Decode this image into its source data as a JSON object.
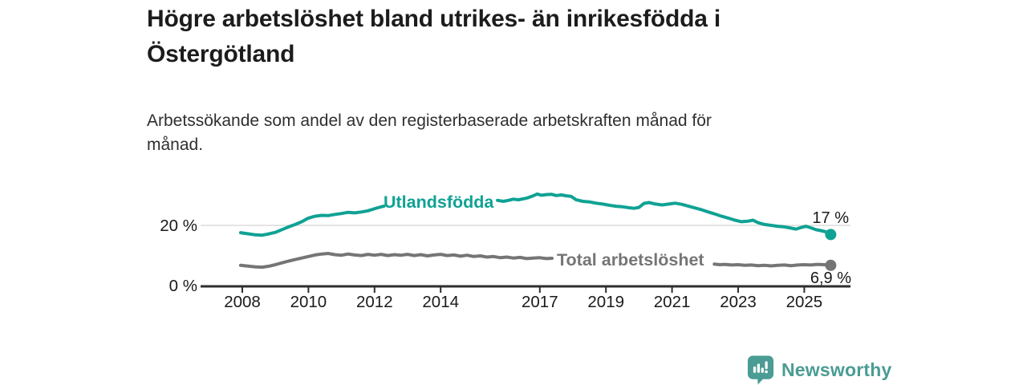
{
  "header": {
    "title": "Högre arbetslöshet bland utrikes- än inrikesfödda i\nÖstergötland",
    "subtitle": "Arbetssökande som andel av den registerbaserade arbetskraften månad för\nmånad."
  },
  "footer": {
    "brand": "Newsworthy",
    "brand_color": "#4a9c94"
  },
  "chart_data": {
    "type": "line",
    "title": "Högre arbetslöshet bland utrikes- än inrikesfödda i Östergötland",
    "subtitle": "Arbetssökande som andel av den registerbaserade arbetskraften månad för månad.",
    "unit": "%",
    "x_axis": {
      "ticks": [
        2008,
        2010,
        2012,
        2014,
        2017,
        2019,
        2021,
        2023,
        2025
      ],
      "range": [
        2006.7,
        2026.4
      ]
    },
    "y_axis": {
      "ticks": [
        {
          "value": 0,
          "label": "0 %"
        },
        {
          "value": 20,
          "label": "20 %"
        }
      ],
      "ylim": [
        0,
        33
      ],
      "gridlines": [
        20
      ]
    },
    "grid": "single light horizontal gridline at 20 %",
    "legend_position": "inline labels on lines; end-value labels at right",
    "series": [
      {
        "name": "Utlandsfödda",
        "color": "#0fa294",
        "line_label": "Utlandsfödda",
        "end_label": "17 %",
        "end_value": 17,
        "note": "line interrupted by its inline label between ~2012.3 and ~2015.7",
        "segments": [
          [
            [
              2007.95,
              17.6
            ],
            [
              2008.2,
              17.2
            ],
            [
              2008.4,
              16.9
            ],
            [
              2008.6,
              16.8
            ],
            [
              2008.8,
              17.2
            ],
            [
              2009.0,
              17.7
            ],
            [
              2009.2,
              18.6
            ],
            [
              2009.4,
              19.5
            ],
            [
              2009.6,
              20.3
            ],
            [
              2009.8,
              21.2
            ],
            [
              2010.0,
              22.4
            ],
            [
              2010.2,
              23.0
            ],
            [
              2010.4,
              23.3
            ],
            [
              2010.6,
              23.2
            ],
            [
              2010.8,
              23.6
            ],
            [
              2011.0,
              23.9
            ],
            [
              2011.2,
              24.3
            ],
            [
              2011.4,
              24.1
            ],
            [
              2011.6,
              24.4
            ],
            [
              2011.8,
              24.8
            ],
            [
              2011.95,
              25.3
            ],
            [
              2012.1,
              25.8
            ],
            [
              2012.28,
              26.3
            ]
          ],
          [
            [
              2015.72,
              28.2
            ],
            [
              2015.9,
              27.9
            ],
            [
              2016.05,
              28.2
            ],
            [
              2016.2,
              28.6
            ],
            [
              2016.35,
              28.4
            ],
            [
              2016.5,
              28.7
            ],
            [
              2016.65,
              29.1
            ],
            [
              2016.8,
              29.7
            ],
            [
              2016.92,
              30.3
            ],
            [
              2017.05,
              29.9
            ],
            [
              2017.2,
              30.1
            ],
            [
              2017.35,
              30.2
            ],
            [
              2017.5,
              29.8
            ],
            [
              2017.65,
              30.0
            ],
            [
              2017.8,
              29.7
            ],
            [
              2017.95,
              29.5
            ],
            [
              2018.1,
              28.4
            ],
            [
              2018.3,
              27.9
            ],
            [
              2018.5,
              27.7
            ],
            [
              2018.7,
              27.3
            ],
            [
              2018.9,
              27.0
            ],
            [
              2019.1,
              26.6
            ],
            [
              2019.3,
              26.3
            ],
            [
              2019.5,
              26.1
            ],
            [
              2019.7,
              25.8
            ],
            [
              2019.85,
              25.6
            ],
            [
              2020.0,
              25.9
            ],
            [
              2020.15,
              27.2
            ],
            [
              2020.3,
              27.5
            ],
            [
              2020.5,
              27.0
            ],
            [
              2020.7,
              26.7
            ],
            [
              2020.9,
              27.0
            ],
            [
              2021.1,
              27.3
            ],
            [
              2021.3,
              26.9
            ],
            [
              2021.5,
              26.3
            ],
            [
              2021.7,
              25.7
            ],
            [
              2021.9,
              25.1
            ],
            [
              2022.1,
              24.4
            ],
            [
              2022.3,
              23.7
            ],
            [
              2022.5,
              23.0
            ],
            [
              2022.7,
              22.4
            ],
            [
              2022.9,
              21.7
            ],
            [
              2023.1,
              21.2
            ],
            [
              2023.3,
              21.4
            ],
            [
              2023.45,
              21.7
            ],
            [
              2023.6,
              20.9
            ],
            [
              2023.8,
              20.3
            ],
            [
              2024.0,
              20.0
            ],
            [
              2024.2,
              19.7
            ],
            [
              2024.4,
              19.5
            ],
            [
              2024.6,
              19.1
            ],
            [
              2024.75,
              18.8
            ],
            [
              2024.9,
              19.3
            ],
            [
              2025.05,
              19.7
            ],
            [
              2025.2,
              19.2
            ],
            [
              2025.35,
              18.6
            ],
            [
              2025.5,
              18.3
            ],
            [
              2025.65,
              17.9
            ],
            [
              2025.8,
              17.0
            ]
          ]
        ]
      },
      {
        "name": "Total arbetslöshet",
        "color": "#757575",
        "line_label": "Total arbetslöshet",
        "end_label": "6,9 %",
        "end_value": 6.9,
        "note": "line interrupted by its inline label between ~2017.4 and ~2022.3",
        "segments": [
          [
            [
              2007.95,
              6.9
            ],
            [
              2008.2,
              6.6
            ],
            [
              2008.4,
              6.4
            ],
            [
              2008.6,
              6.3
            ],
            [
              2008.8,
              6.6
            ],
            [
              2009.0,
              7.1
            ],
            [
              2009.2,
              7.7
            ],
            [
              2009.4,
              8.3
            ],
            [
              2009.6,
              8.8
            ],
            [
              2009.8,
              9.3
            ],
            [
              2010.0,
              9.8
            ],
            [
              2010.2,
              10.3
            ],
            [
              2010.4,
              10.6
            ],
            [
              2010.6,
              10.8
            ],
            [
              2010.8,
              10.4
            ],
            [
              2011.0,
              10.2
            ],
            [
              2011.2,
              10.6
            ],
            [
              2011.4,
              10.3
            ],
            [
              2011.6,
              10.1
            ],
            [
              2011.8,
              10.5
            ],
            [
              2012.0,
              10.2
            ],
            [
              2012.2,
              10.5
            ],
            [
              2012.4,
              10.1
            ],
            [
              2012.6,
              10.4
            ],
            [
              2012.8,
              10.2
            ],
            [
              2013.0,
              10.5
            ],
            [
              2013.2,
              10.1
            ],
            [
              2013.4,
              10.4
            ],
            [
              2013.6,
              10.0
            ],
            [
              2013.8,
              10.3
            ],
            [
              2014.0,
              10.5
            ],
            [
              2014.2,
              10.1
            ],
            [
              2014.4,
              10.3
            ],
            [
              2014.6,
              9.9
            ],
            [
              2014.8,
              10.2
            ],
            [
              2015.0,
              9.8
            ],
            [
              2015.2,
              10.0
            ],
            [
              2015.4,
              9.6
            ],
            [
              2015.6,
              9.8
            ],
            [
              2015.8,
              9.4
            ],
            [
              2016.0,
              9.6
            ],
            [
              2016.2,
              9.3
            ],
            [
              2016.4,
              9.5
            ],
            [
              2016.6,
              9.1
            ],
            [
              2016.8,
              9.3
            ],
            [
              2017.0,
              9.4
            ],
            [
              2017.2,
              9.1
            ],
            [
              2017.37,
              9.2
            ]
          ],
          [
            [
              2022.28,
              7.3
            ],
            [
              2022.45,
              7.1
            ],
            [
              2022.6,
              7.2
            ],
            [
              2022.8,
              7.0
            ],
            [
              2023.0,
              7.1
            ],
            [
              2023.2,
              6.9
            ],
            [
              2023.4,
              7.0
            ],
            [
              2023.6,
              6.8
            ],
            [
              2023.8,
              6.9
            ],
            [
              2024.0,
              6.7
            ],
            [
              2024.2,
              6.9
            ],
            [
              2024.4,
              7.0
            ],
            [
              2024.6,
              6.8
            ],
            [
              2024.8,
              7.0
            ],
            [
              2025.0,
              7.1
            ],
            [
              2025.2,
              7.0
            ],
            [
              2025.4,
              7.2
            ],
            [
              2025.6,
              7.1
            ],
            [
              2025.8,
              6.9
            ]
          ]
        ]
      }
    ]
  }
}
